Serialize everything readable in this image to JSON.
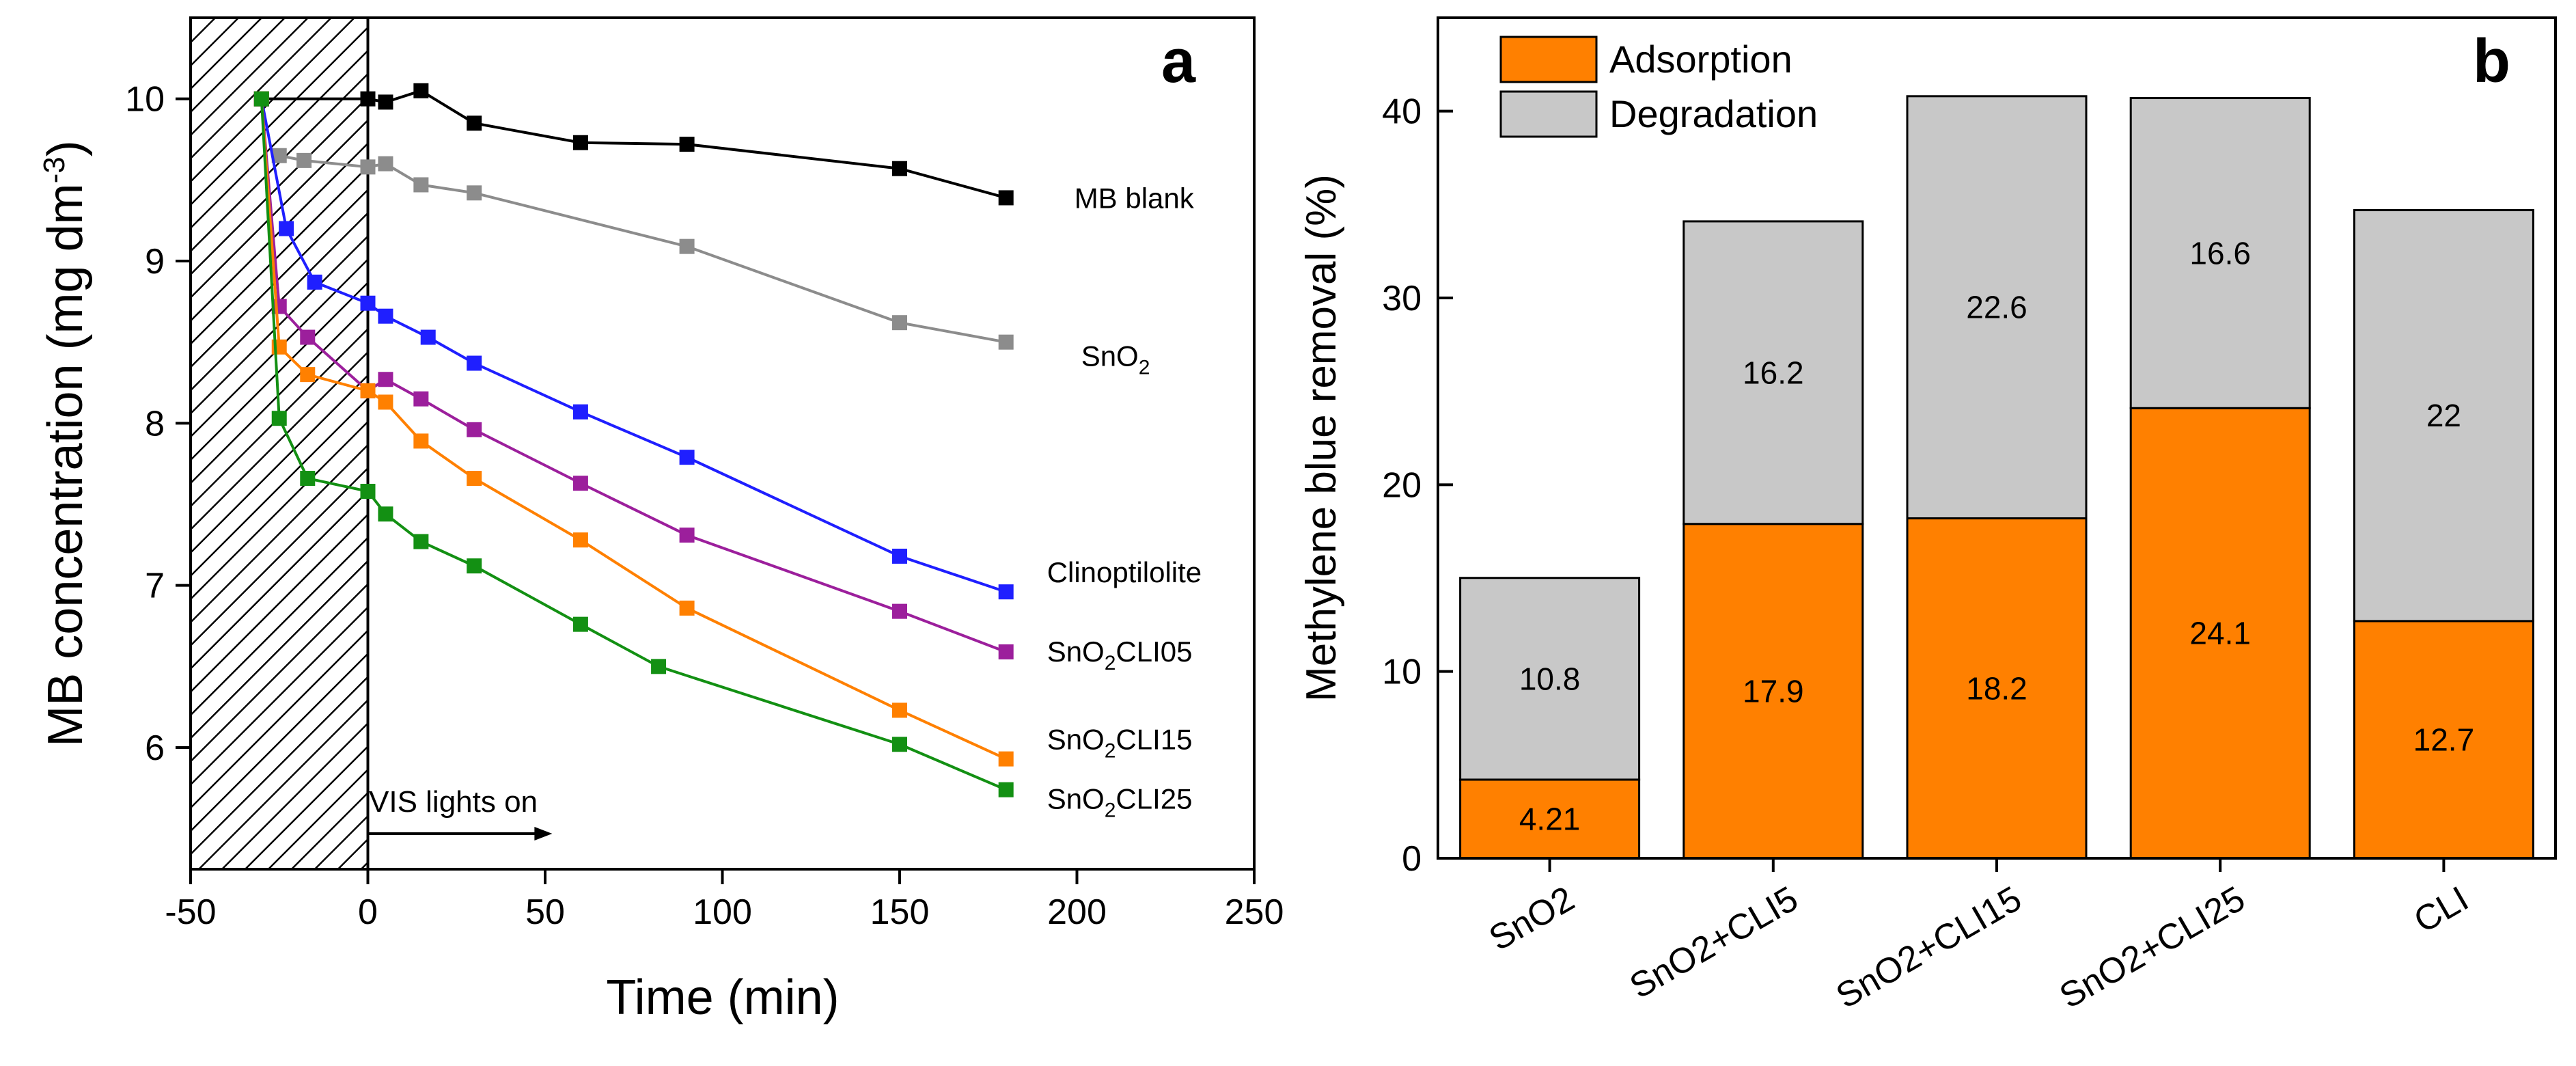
{
  "chart_data": [
    {
      "type": "line",
      "panel_label": "a",
      "xlabel": "Time (min)",
      "ylabel": "MB concentration (mg dm",
      "ylabel_sup": "-3",
      "ylabel_close": ")",
      "xlim": [
        -50,
        250
      ],
      "ylim": [
        5.25,
        10.5
      ],
      "xticks": [
        -50,
        0,
        50,
        100,
        150,
        200,
        250
      ],
      "yticks": [
        6,
        7,
        8,
        9,
        10
      ],
      "dark_region": [
        -50,
        0
      ],
      "annotation": "VIS lights on",
      "series": [
        {
          "name": "MB blank",
          "label_main": "MB blank",
          "label_sub": "",
          "label_tail": "",
          "color": "#000000",
          "x": [
            -30,
            0,
            5,
            15,
            30,
            60,
            90,
            150,
            180
          ],
          "y": [
            10.0,
            10.0,
            9.98,
            10.05,
            9.85,
            9.73,
            9.72,
            9.57,
            9.39
          ]
        },
        {
          "name": "SnO2",
          "label_main": "SnO",
          "label_sub": "2",
          "label_tail": "",
          "color": "#8c8c8c",
          "x": [
            -25,
            -18,
            0,
            5,
            15,
            30,
            90,
            150,
            180
          ],
          "y": [
            9.65,
            9.62,
            9.58,
            9.6,
            9.47,
            9.42,
            9.09,
            8.62,
            8.5
          ]
        },
        {
          "name": "Clinoptilolite",
          "label_main": "Clinoptilolite",
          "label_sub": "",
          "label_tail": "",
          "color": "#1f1fff",
          "x": [
            -30,
            -23,
            -15,
            0,
            5,
            17,
            30,
            60,
            90,
            150,
            180
          ],
          "y": [
            10.0,
            9.2,
            8.87,
            8.74,
            8.66,
            8.53,
            8.37,
            8.07,
            7.79,
            7.18,
            6.96
          ]
        },
        {
          "name": "SnO2CLI05",
          "label_main": "SnO",
          "label_sub": "2",
          "label_tail": "CLI05",
          "color": "#9c1f9c",
          "x": [
            -30,
            -25,
            -17,
            0,
            5,
            15,
            30,
            60,
            90,
            150,
            180
          ],
          "y": [
            10.0,
            8.72,
            8.53,
            8.2,
            8.27,
            8.15,
            7.96,
            7.63,
            7.31,
            6.84,
            6.59
          ]
        },
        {
          "name": "SnO2CLI15",
          "label_main": "SnO",
          "label_sub": "2",
          "label_tail": "CLI15",
          "color": "#ff8000",
          "x": [
            -30,
            -25,
            -17,
            0,
            5,
            15,
            30,
            60,
            90,
            150,
            180
          ],
          "y": [
            10.0,
            8.47,
            8.3,
            8.2,
            8.13,
            7.89,
            7.66,
            7.28,
            6.86,
            6.23,
            5.93
          ]
        },
        {
          "name": "SnO2CLI25",
          "label_main": "SnO",
          "label_sub": "2",
          "label_tail": "CLI25",
          "color": "#139013",
          "x": [
            -30,
            -25,
            -17,
            0,
            5,
            15,
            30,
            60,
            82,
            150,
            180
          ],
          "y": [
            10.0,
            8.03,
            7.66,
            7.58,
            7.44,
            7.27,
            7.12,
            6.76,
            6.5,
            6.02,
            5.74
          ]
        }
      ]
    },
    {
      "type": "bar",
      "stacked": true,
      "panel_label": "b",
      "xlabel": "",
      "ylabel": "Methylene blue removal (%)",
      "ylim": [
        0,
        45
      ],
      "yticks": [
        0,
        10,
        20,
        30,
        40
      ],
      "categories": [
        "SnO2",
        "SnO2+CLI5",
        "SnO2+CLI15",
        "SnO2+CLI25",
        "CLI"
      ],
      "series": [
        {
          "name": "Adsorption",
          "color": "#ff8000",
          "values": [
            4.21,
            17.9,
            18.2,
            24.1,
            12.7
          ],
          "labels": [
            "4.21",
            "17.9",
            "18.2",
            "24.1",
            "12.7"
          ]
        },
        {
          "name": "Degradation",
          "color": "#c8c8c8",
          "values": [
            10.8,
            16.2,
            22.6,
            16.6,
            22
          ],
          "labels": [
            "10.8",
            "16.2",
            "22.6",
            "16.6",
            "22"
          ]
        }
      ],
      "legend_position": "top-left"
    }
  ]
}
